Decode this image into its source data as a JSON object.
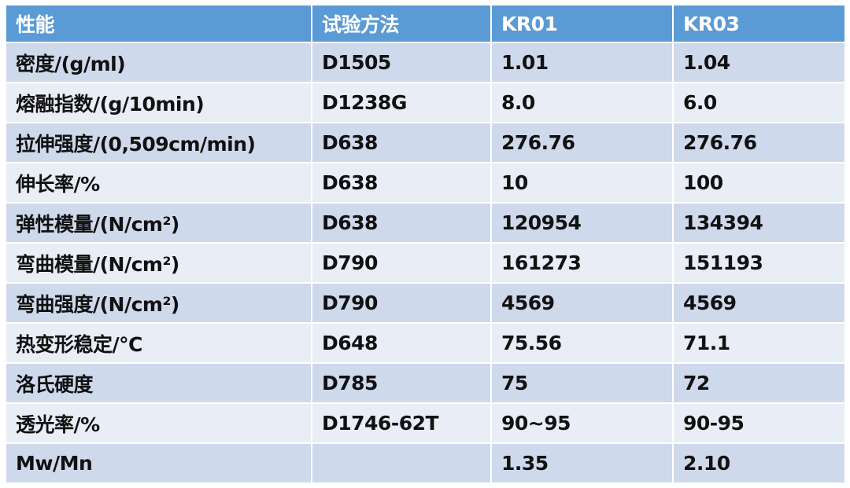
{
  "table": {
    "headers": [
      "性能",
      "试验方法",
      "KR01",
      "KR03"
    ],
    "rows": [
      [
        "密度/(g/ml)",
        "D1505",
        "1.01",
        "1.04"
      ],
      [
        "熔融指数/(g/10min)",
        "D1238G",
        "8.0",
        "6.0"
      ],
      [
        "拉伸强度/(0,509cm/min)",
        "D638",
        "276.76",
        "276.76"
      ],
      [
        "伸长率/%",
        "D638",
        "10",
        "100"
      ],
      [
        "弹性模量/(N/cm²)",
        "D638",
        "120954",
        "134394"
      ],
      [
        "弯曲模量/(N/cm²)",
        "D790",
        "161273",
        "151193"
      ],
      [
        "弯曲强度/(N/cm²)",
        "D790",
        "4569",
        "4569"
      ],
      [
        "热变形稳定/℃",
        "D648",
        "75.56",
        "71.1"
      ],
      [
        "洛氏硬度",
        "D785",
        "75",
        "72"
      ],
      [
        "透光率/%",
        "D1746-62T",
        "90~95",
        "90-95"
      ],
      [
        "Mw/Mn",
        "",
        "1.35",
        "2.10"
      ]
    ]
  },
  "colors": {
    "header": "#5b9bd5",
    "row_dark": "#cfd9ec",
    "row_light": "#e9edf6"
  }
}
